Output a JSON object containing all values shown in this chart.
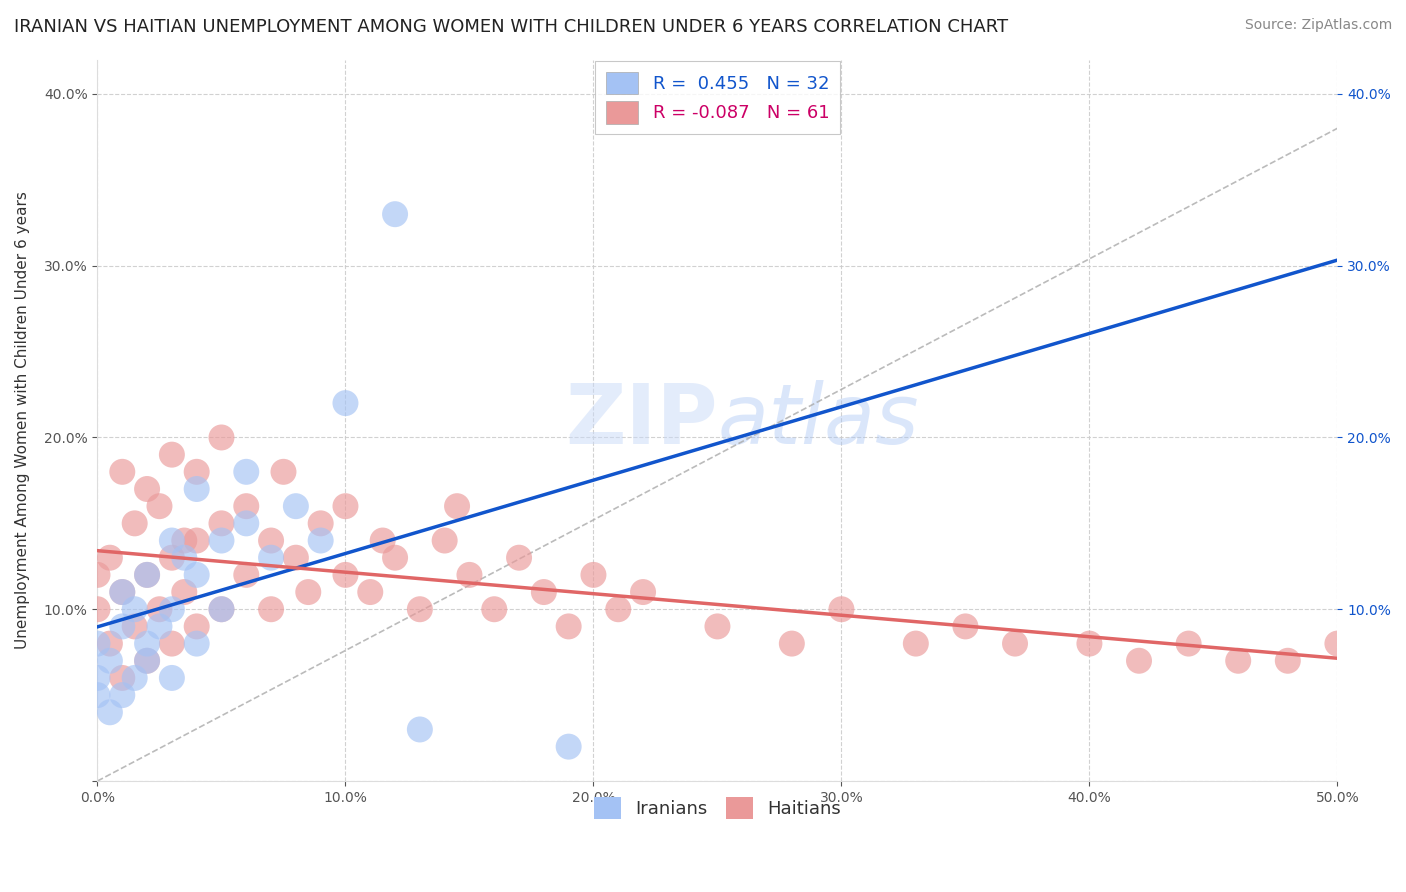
{
  "title": "IRANIAN VS HAITIAN UNEMPLOYMENT AMONG WOMEN WITH CHILDREN UNDER 6 YEARS CORRELATION CHART",
  "source": "Source: ZipAtlas.com",
  "ylabel": "Unemployment Among Women with Children Under 6 years",
  "xlim": [
    0.0,
    0.5
  ],
  "ylim": [
    0.0,
    0.42
  ],
  "x_ticks": [
    0.0,
    0.1,
    0.2,
    0.3,
    0.4,
    0.5
  ],
  "y_ticks": [
    0.0,
    0.1,
    0.2,
    0.3,
    0.4
  ],
  "right_y_ticks": [
    0.1,
    0.2,
    0.3,
    0.4
  ],
  "iranian_R": 0.455,
  "iranian_N": 32,
  "haitian_R": -0.087,
  "haitian_N": 61,
  "iranian_color": "#a4c2f4",
  "haitian_color": "#ea9999",
  "iranian_line_color": "#1155cc",
  "haitian_line_color": "#e06666",
  "background_color": "#ffffff",
  "grid_color": "#cccccc",
  "watermark_color": "#c9daf8",
  "title_fontsize": 13,
  "source_fontsize": 10,
  "legend_fontsize": 13,
  "axis_fontsize": 10,
  "iranians_scatter_x": [
    0.0,
    0.0,
    0.0,
    0.005,
    0.005,
    0.01,
    0.01,
    0.01,
    0.015,
    0.015,
    0.02,
    0.02,
    0.02,
    0.025,
    0.03,
    0.03,
    0.03,
    0.035,
    0.04,
    0.04,
    0.04,
    0.05,
    0.05,
    0.06,
    0.06,
    0.07,
    0.08,
    0.09,
    0.1,
    0.12,
    0.13,
    0.19
  ],
  "iranians_scatter_y": [
    0.05,
    0.06,
    0.08,
    0.04,
    0.07,
    0.05,
    0.09,
    0.11,
    0.06,
    0.1,
    0.07,
    0.08,
    0.12,
    0.09,
    0.06,
    0.1,
    0.14,
    0.13,
    0.08,
    0.12,
    0.17,
    0.1,
    0.14,
    0.15,
    0.18,
    0.13,
    0.16,
    0.14,
    0.22,
    0.33,
    0.03,
    0.02
  ],
  "haitians_scatter_x": [
    0.0,
    0.0,
    0.005,
    0.005,
    0.01,
    0.01,
    0.01,
    0.015,
    0.015,
    0.02,
    0.02,
    0.02,
    0.025,
    0.025,
    0.03,
    0.03,
    0.03,
    0.035,
    0.035,
    0.04,
    0.04,
    0.04,
    0.05,
    0.05,
    0.05,
    0.06,
    0.06,
    0.07,
    0.07,
    0.075,
    0.08,
    0.085,
    0.09,
    0.1,
    0.1,
    0.11,
    0.115,
    0.12,
    0.13,
    0.14,
    0.145,
    0.15,
    0.16,
    0.17,
    0.18,
    0.19,
    0.2,
    0.21,
    0.22,
    0.25,
    0.28,
    0.3,
    0.33,
    0.35,
    0.37,
    0.4,
    0.42,
    0.44,
    0.46,
    0.48,
    0.5
  ],
  "haitians_scatter_y": [
    0.1,
    0.12,
    0.08,
    0.13,
    0.06,
    0.11,
    0.18,
    0.09,
    0.15,
    0.07,
    0.12,
    0.17,
    0.1,
    0.16,
    0.08,
    0.13,
    0.19,
    0.11,
    0.14,
    0.09,
    0.14,
    0.18,
    0.1,
    0.15,
    0.2,
    0.12,
    0.16,
    0.1,
    0.14,
    0.18,
    0.13,
    0.11,
    0.15,
    0.12,
    0.16,
    0.11,
    0.14,
    0.13,
    0.1,
    0.14,
    0.16,
    0.12,
    0.1,
    0.13,
    0.11,
    0.09,
    0.12,
    0.1,
    0.11,
    0.09,
    0.08,
    0.1,
    0.08,
    0.09,
    0.08,
    0.08,
    0.07,
    0.08,
    0.07,
    0.07,
    0.08
  ]
}
